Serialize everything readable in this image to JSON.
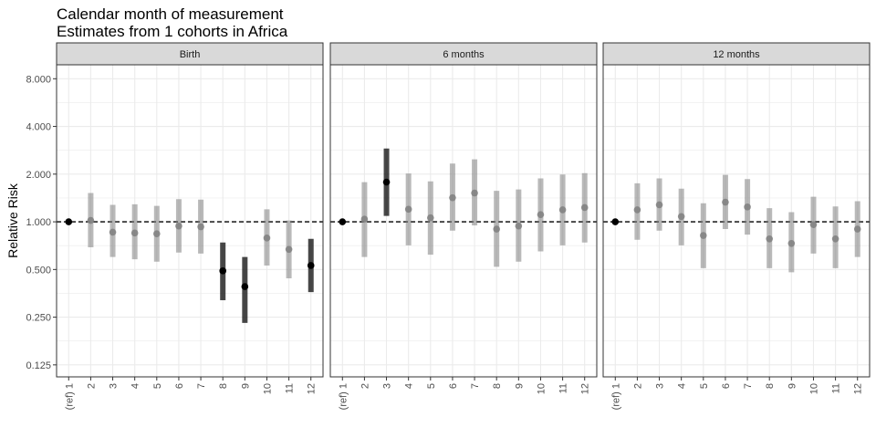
{
  "chart_data": {
    "type": "scatter",
    "title": "Calendar month of measurement",
    "subtitle": "Estimates from 1 cohorts in Africa",
    "ylabel": "Relative Risk",
    "xlabel": "",
    "y_scale": "log2",
    "ylim": [
      0.105,
      9.8
    ],
    "y_ticks": [
      0.125,
      0.25,
      0.5,
      1,
      2,
      4,
      8
    ],
    "y_tick_labels": [
      "0.125",
      "0.250",
      "0.500",
      "1.000",
      "2.000",
      "4.000",
      "8.000"
    ],
    "reference_line": 1,
    "grid": true,
    "categories": [
      "(ref) 1",
      "2",
      "3",
      "4",
      "5",
      "6",
      "7",
      "8",
      "9",
      "10",
      "11",
      "12"
    ],
    "colors": {
      "significant": "#000000",
      "not_significant": "#7f7f7f",
      "strip_fill": "#d9d9d9",
      "panel_border": "#333333",
      "grid": "#ebebeb"
    },
    "panels": [
      {
        "label": "Birth",
        "points": [
          {
            "rr": 1.0,
            "lower": null,
            "upper": null,
            "ref": true,
            "significant": true
          },
          {
            "rr": 1.02,
            "lower": 0.69,
            "upper": 1.52,
            "significant": false
          },
          {
            "rr": 0.86,
            "lower": 0.6,
            "upper": 1.28,
            "significant": false
          },
          {
            "rr": 0.85,
            "lower": 0.58,
            "upper": 1.29,
            "significant": false
          },
          {
            "rr": 0.84,
            "lower": 0.56,
            "upper": 1.26,
            "significant": false
          },
          {
            "rr": 0.94,
            "lower": 0.64,
            "upper": 1.39,
            "significant": false
          },
          {
            "rr": 0.93,
            "lower": 0.63,
            "upper": 1.38,
            "significant": false
          },
          {
            "rr": 0.49,
            "lower": 0.32,
            "upper": 0.74,
            "significant": true
          },
          {
            "rr": 0.39,
            "lower": 0.23,
            "upper": 0.6,
            "significant": true
          },
          {
            "rr": 0.79,
            "lower": 0.53,
            "upper": 1.2,
            "significant": false
          },
          {
            "rr": 0.67,
            "lower": 0.44,
            "upper": 1.02,
            "significant": false
          },
          {
            "rr": 0.53,
            "lower": 0.36,
            "upper": 0.78,
            "significant": true
          }
        ]
      },
      {
        "label": "6 months",
        "points": [
          {
            "rr": 1.0,
            "lower": null,
            "upper": null,
            "ref": true,
            "significant": true
          },
          {
            "rr": 1.04,
            "lower": 0.6,
            "upper": 1.78,
            "significant": false
          },
          {
            "rr": 1.78,
            "lower": 1.09,
            "upper": 2.9,
            "significant": true
          },
          {
            "rr": 1.2,
            "lower": 0.71,
            "upper": 2.02,
            "significant": false
          },
          {
            "rr": 1.06,
            "lower": 0.62,
            "upper": 1.8,
            "significant": false
          },
          {
            "rr": 1.42,
            "lower": 0.88,
            "upper": 2.33,
            "significant": false
          },
          {
            "rr": 1.52,
            "lower": 0.95,
            "upper": 2.48,
            "significant": false
          },
          {
            "rr": 0.9,
            "lower": 0.52,
            "upper": 1.57,
            "significant": false
          },
          {
            "rr": 0.94,
            "lower": 0.56,
            "upper": 1.6,
            "significant": false
          },
          {
            "rr": 1.11,
            "lower": 0.65,
            "upper": 1.88,
            "significant": false
          },
          {
            "rr": 1.19,
            "lower": 0.71,
            "upper": 1.99,
            "significant": false
          },
          {
            "rr": 1.23,
            "lower": 0.74,
            "upper": 2.03,
            "significant": false
          }
        ]
      },
      {
        "label": "12 months",
        "points": [
          {
            "rr": 1.0,
            "lower": null,
            "upper": null,
            "ref": true,
            "significant": true
          },
          {
            "rr": 1.19,
            "lower": 0.77,
            "upper": 1.75,
            "significant": false
          },
          {
            "rr": 1.28,
            "lower": 0.88,
            "upper": 1.88,
            "significant": false
          },
          {
            "rr": 1.08,
            "lower": 0.71,
            "upper": 1.62,
            "significant": false
          },
          {
            "rr": 0.82,
            "lower": 0.51,
            "upper": 1.31,
            "significant": false
          },
          {
            "rr": 1.33,
            "lower": 0.9,
            "upper": 1.98,
            "significant": false
          },
          {
            "rr": 1.24,
            "lower": 0.83,
            "upper": 1.86,
            "significant": false
          },
          {
            "rr": 0.78,
            "lower": 0.51,
            "upper": 1.22,
            "significant": false
          },
          {
            "rr": 0.73,
            "lower": 0.48,
            "upper": 1.15,
            "significant": false
          },
          {
            "rr": 0.96,
            "lower": 0.63,
            "upper": 1.44,
            "significant": false
          },
          {
            "rr": 0.78,
            "lower": 0.51,
            "upper": 1.25,
            "significant": false
          },
          {
            "rr": 0.9,
            "lower": 0.6,
            "upper": 1.35,
            "significant": false
          }
        ]
      }
    ]
  }
}
